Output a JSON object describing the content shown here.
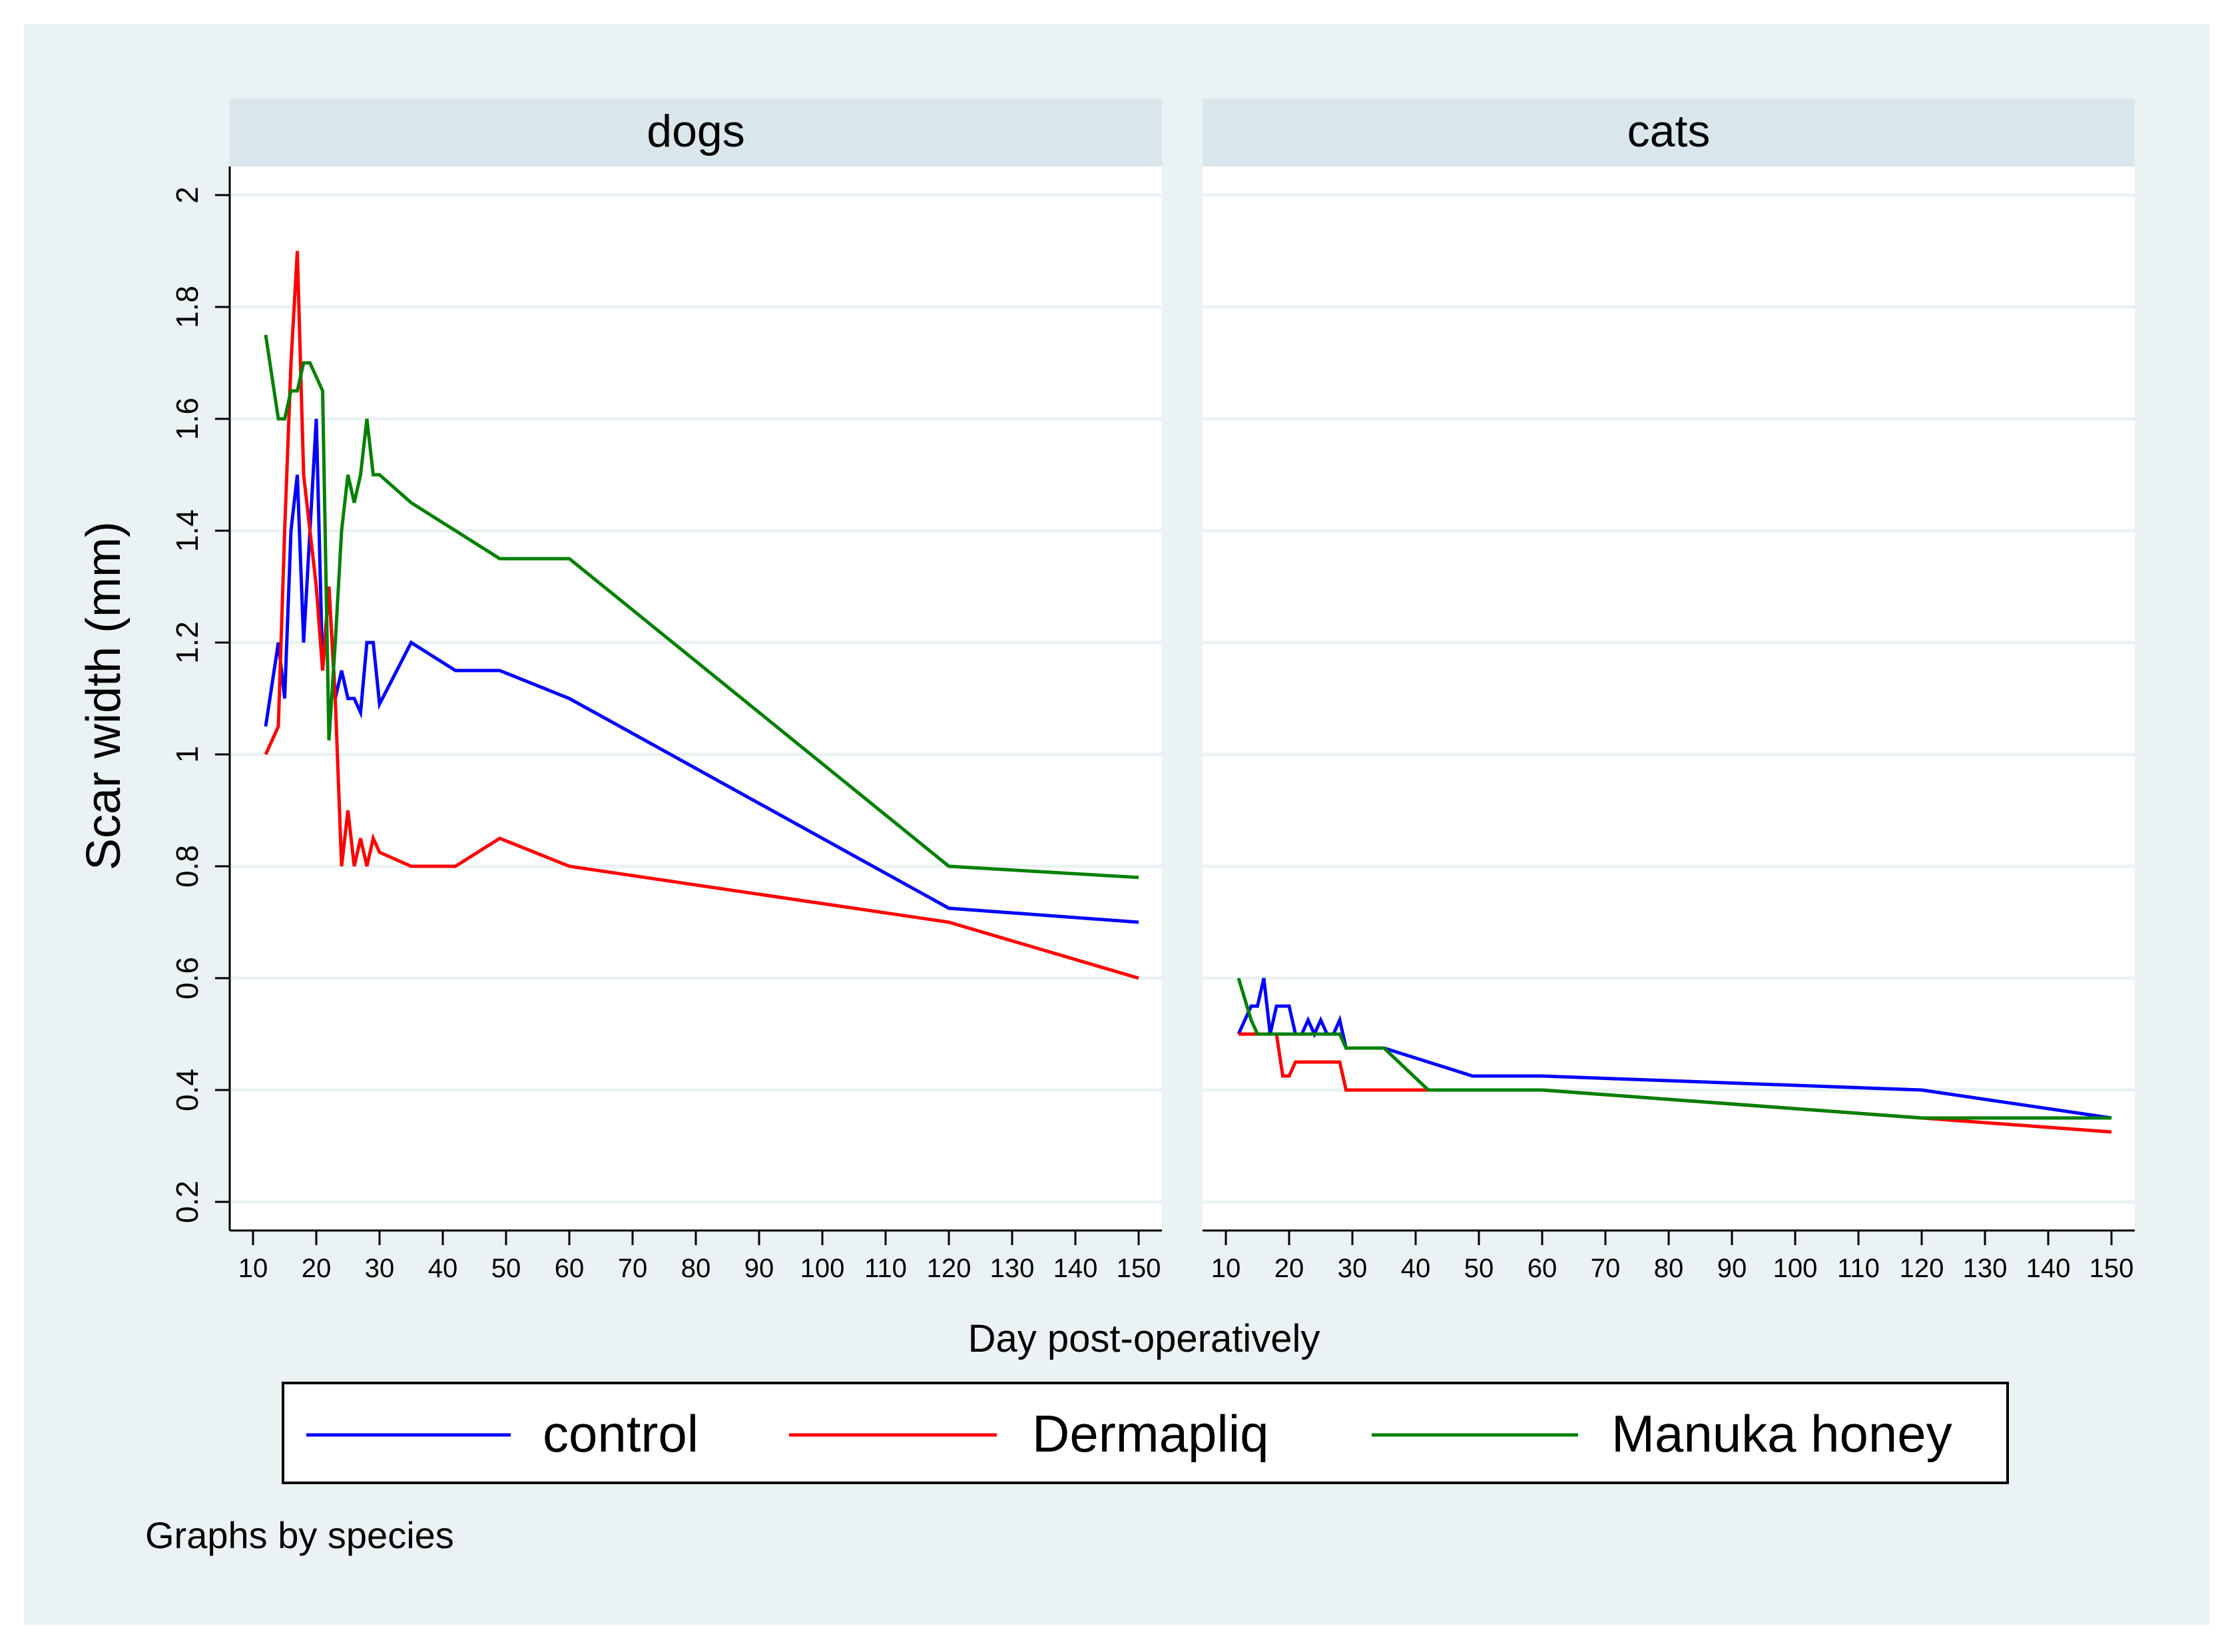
{
  "colors": {
    "page_bg": "#ffffff",
    "outer_bg": "#eaf2f3",
    "plot_bg": "#ffffff",
    "strip_bg": "#d9e6eb",
    "grid": "#eaf2f3",
    "axis": "#000000",
    "control": "#0000ff",
    "dermapliq": "#ff0000",
    "manuka": "#008000"
  },
  "chart_data": {
    "type": "line",
    "ylabel": "Scar width (mm)",
    "xlabel": "Day post-operatively",
    "note": "Graphs by species",
    "xlim": [
      10,
      150
    ],
    "ylim": [
      0.2,
      2.0
    ],
    "xticks": [
      10,
      20,
      30,
      40,
      50,
      60,
      70,
      80,
      90,
      100,
      110,
      120,
      130,
      140,
      150
    ],
    "yticks": [
      0.2,
      0.4,
      0.6,
      0.8,
      1,
      1.2,
      1.4,
      1.6,
      1.8,
      2
    ],
    "ytick_labels": [
      "0.2",
      "0.4",
      "0.6",
      "0.8",
      "1",
      "1.2",
      "1.4",
      "1.6",
      "1.8",
      "2"
    ],
    "legend": [
      "control",
      "Dermapliq",
      "Manuka honey"
    ],
    "panels": [
      {
        "title": "dogs",
        "series": [
          {
            "name": "control",
            "x": [
              12,
              14,
              15,
              16,
              17,
              18,
              19,
              20,
              21,
              22,
              23,
              24,
              25,
              26,
              27,
              28,
              29,
              30,
              35,
              42,
              49,
              60,
              120,
              150
            ],
            "y": [
              1.05,
              1.2,
              1.1,
              1.4,
              1.5,
              1.2,
              1.4,
              1.6,
              1.15,
              1.3,
              1.1,
              1.15,
              1.1,
              1.1,
              1.075,
              1.2,
              1.2,
              1.09,
              1.2,
              1.15,
              1.15,
              1.1,
              0.725,
              0.7
            ]
          },
          {
            "name": "Dermapliq",
            "x": [
              12,
              14,
              15,
              16,
              17,
              18,
              19,
              20,
              21,
              22,
              23,
              24,
              25,
              26,
              27,
              28,
              29,
              30,
              35,
              42,
              49,
              60,
              120,
              150
            ],
            "y": [
              1.0,
              1.05,
              1.4,
              1.7,
              1.9,
              1.5,
              1.4,
              1.3,
              1.15,
              1.3,
              1.1,
              0.8,
              0.9,
              0.8,
              0.85,
              0.8,
              0.85,
              0.825,
              0.8,
              0.8,
              0.85,
              0.8,
              0.7,
              0.6
            ]
          },
          {
            "name": "Manuka honey",
            "x": [
              12,
              14,
              15,
              16,
              17,
              18,
              19,
              20,
              21,
              22,
              23,
              24,
              25,
              26,
              27,
              28,
              29,
              30,
              35,
              42,
              49,
              60,
              120,
              150
            ],
            "y": [
              1.75,
              1.6,
              1.6,
              1.65,
              1.65,
              1.7,
              1.7,
              1.675,
              1.65,
              1.025,
              1.2,
              1.4,
              1.5,
              1.45,
              1.5,
              1.6,
              1.5,
              1.5,
              1.45,
              1.4,
              1.35,
              1.35,
              0.8,
              0.78
            ]
          }
        ]
      },
      {
        "title": "cats",
        "series": [
          {
            "name": "control",
            "x": [
              12,
              14,
              15,
              16,
              17,
              18,
              19,
              20,
              21,
              22,
              23,
              24,
              25,
              26,
              27,
              28,
              29,
              30,
              35,
              42,
              49,
              60,
              120,
              150
            ],
            "y": [
              0.5,
              0.55,
              0.55,
              0.6,
              0.5,
              0.55,
              0.55,
              0.55,
              0.5,
              0.5,
              0.525,
              0.5,
              0.525,
              0.5,
              0.5,
              0.525,
              0.475,
              0.475,
              0.475,
              0.45,
              0.425,
              0.425,
              0.4,
              0.35
            ]
          },
          {
            "name": "Dermapliq",
            "x": [
              12,
              14,
              15,
              16,
              17,
              18,
              19,
              20,
              21,
              22,
              23,
              24,
              25,
              26,
              27,
              28,
              29,
              30,
              35,
              42,
              49,
              60,
              120,
              150
            ],
            "y": [
              0.5,
              0.5,
              0.5,
              0.5,
              0.5,
              0.5,
              0.425,
              0.425,
              0.45,
              0.45,
              0.45,
              0.45,
              0.45,
              0.45,
              0.45,
              0.45,
              0.4,
              0.4,
              0.4,
              0.4,
              0.4,
              0.4,
              0.35,
              0.325
            ]
          },
          {
            "name": "Manuka honey",
            "x": [
              12,
              14,
              15,
              16,
              17,
              18,
              19,
              20,
              21,
              22,
              23,
              24,
              25,
              26,
              27,
              28,
              29,
              30,
              35,
              42,
              49,
              60,
              120,
              150
            ],
            "y": [
              0.6,
              0.525,
              0.5,
              0.5,
              0.5,
              0.5,
              0.5,
              0.5,
              0.5,
              0.5,
              0.5,
              0.5,
              0.5,
              0.5,
              0.5,
              0.5,
              0.475,
              0.475,
              0.475,
              0.4,
              0.4,
              0.4,
              0.35,
              0.35
            ]
          }
        ]
      }
    ]
  }
}
